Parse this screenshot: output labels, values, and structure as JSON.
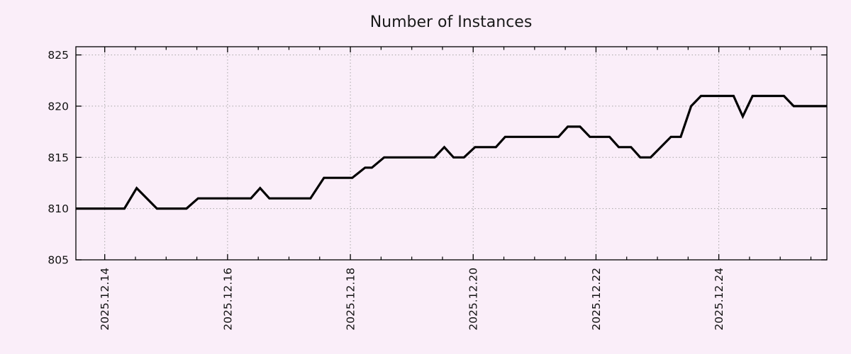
{
  "chart_data": {
    "type": "line",
    "title": "Number of Instances",
    "xlabel": "",
    "ylabel": "",
    "legend": "none",
    "grid": true,
    "background_color": "#faeef9",
    "line_color": "#000000",
    "grid_color": "#a6a6a6",
    "axis_color": "#000000",
    "x_unit_note": "day offset from 2025.12.14",
    "xlim": [
      -0.47,
      11.76
    ],
    "ylim": [
      805,
      825.8
    ],
    "y_ticks": [
      805,
      810,
      815,
      820,
      825
    ],
    "x_ticks": [
      {
        "t": 0,
        "label": "2025.12.14"
      },
      {
        "t": 2,
        "label": "2025.12.16"
      },
      {
        "t": 4,
        "label": "2025.12.18"
      },
      {
        "t": 6,
        "label": "2025.12.20"
      },
      {
        "t": 8,
        "label": "2025.12.22"
      },
      {
        "t": 10,
        "label": "2025.12.24"
      }
    ],
    "x_minor_tick_step": 0.5,
    "points": [
      [
        -0.47,
        810
      ],
      [
        0.32,
        810
      ],
      [
        0.52,
        812
      ],
      [
        0.85,
        810
      ],
      [
        1.33,
        810
      ],
      [
        1.52,
        811
      ],
      [
        2.38,
        811
      ],
      [
        2.53,
        812
      ],
      [
        2.68,
        811
      ],
      [
        3.35,
        811
      ],
      [
        3.57,
        813
      ],
      [
        4.03,
        813
      ],
      [
        4.24,
        814
      ],
      [
        4.35,
        814
      ],
      [
        4.55,
        815
      ],
      [
        5.37,
        815
      ],
      [
        5.53,
        816
      ],
      [
        5.68,
        815
      ],
      [
        5.85,
        815
      ],
      [
        6.03,
        816
      ],
      [
        6.37,
        816
      ],
      [
        6.52,
        817
      ],
      [
        7.39,
        817
      ],
      [
        7.54,
        818
      ],
      [
        7.74,
        818
      ],
      [
        7.9,
        817
      ],
      [
        8.22,
        817
      ],
      [
        8.37,
        816
      ],
      [
        8.57,
        816
      ],
      [
        8.72,
        815
      ],
      [
        8.89,
        815
      ],
      [
        9.22,
        817
      ],
      [
        9.38,
        817
      ],
      [
        9.55,
        820
      ],
      [
        9.71,
        821
      ],
      [
        10.24,
        821
      ],
      [
        10.39,
        819
      ],
      [
        10.55,
        821
      ],
      [
        11.06,
        821
      ],
      [
        11.22,
        820
      ],
      [
        11.76,
        820
      ]
    ]
  }
}
